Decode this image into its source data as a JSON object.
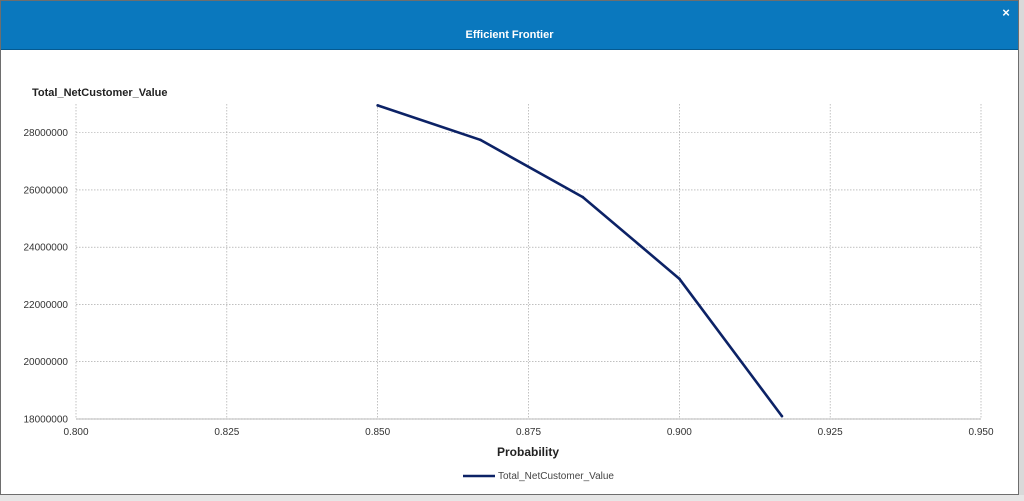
{
  "dialog": {
    "title": "Efficient Frontier",
    "close_label": "×",
    "header_color": "#0a78be"
  },
  "chart_data": {
    "type": "line",
    "title": "Efficient Frontier",
    "xlabel": "Probability",
    "ylabel": "Total_NetCustomer_Value",
    "xlim": [
      0.8,
      0.95
    ],
    "ylim": [
      18000000,
      29000000
    ],
    "xticks": [
      0.8,
      0.825,
      0.85,
      0.875,
      0.9,
      0.925,
      0.95
    ],
    "xtick_labels": [
      "0.800",
      "0.825",
      "0.850",
      "0.875",
      "0.900",
      "0.925",
      "0.950"
    ],
    "yticks": [
      18000000,
      20000000,
      22000000,
      24000000,
      26000000,
      28000000
    ],
    "ytick_labels": [
      "18000000",
      "20000000",
      "22000000",
      "24000000",
      "26000000",
      "28000000"
    ],
    "grid": true,
    "legend": "bottom-center",
    "series": [
      {
        "name": "Total_NetCustomer_Value",
        "color": "#0c2266",
        "x": [
          0.85,
          0.867,
          0.884,
          0.9,
          0.917
        ],
        "y": [
          28950000,
          27750000,
          25750000,
          22900000,
          18100000
        ]
      }
    ]
  }
}
